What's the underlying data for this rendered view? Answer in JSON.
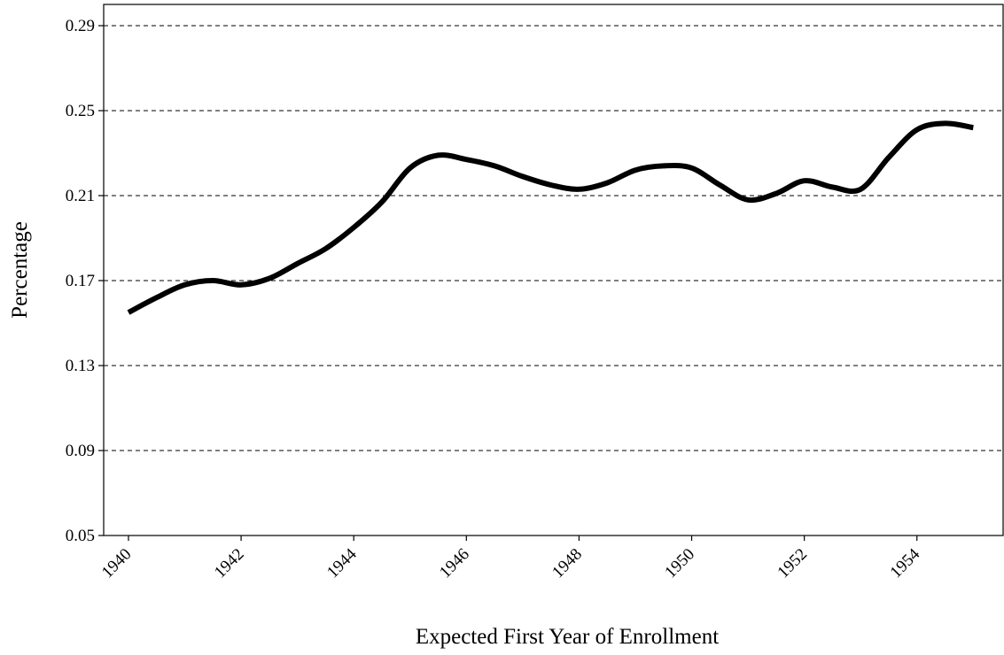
{
  "chart_data": {
    "type": "line",
    "x_label": "Expected First Year of Enrollment",
    "y_label": "Percentage",
    "x": [
      1940,
      1940.5,
      1941,
      1941.5,
      1942,
      1942.5,
      1943,
      1943.5,
      1944,
      1944.5,
      1945,
      1945.5,
      1946,
      1946.5,
      1947,
      1947.5,
      1948,
      1948.5,
      1949,
      1949.5,
      1950,
      1950.5,
      1951,
      1951.5,
      1952,
      1952.5,
      1953,
      1953.5,
      1954,
      1954.5,
      1955
    ],
    "series": [
      {
        "color": "#000000",
        "values": [
          0.155,
          0.162,
          0.168,
          0.17,
          0.168,
          0.171,
          0.178,
          0.185,
          0.195,
          0.207,
          0.223,
          0.229,
          0.227,
          0.224,
          0.219,
          0.215,
          0.213,
          0.216,
          0.222,
          0.224,
          0.223,
          0.215,
          0.208,
          0.211,
          0.217,
          0.214,
          0.213,
          0.228,
          0.241,
          0.244,
          0.242
        ]
      }
    ],
    "xlim": [
      1939.56,
      1955.53
    ],
    "xticks": [
      1940,
      1942,
      1944,
      1946,
      1948,
      1950,
      1952,
      1954
    ],
    "ylim": [
      0.05,
      0.3
    ],
    "yticks": [
      0.05,
      0.09,
      0.13,
      0.17,
      0.21,
      0.25,
      0.29
    ],
    "grid": true
  }
}
